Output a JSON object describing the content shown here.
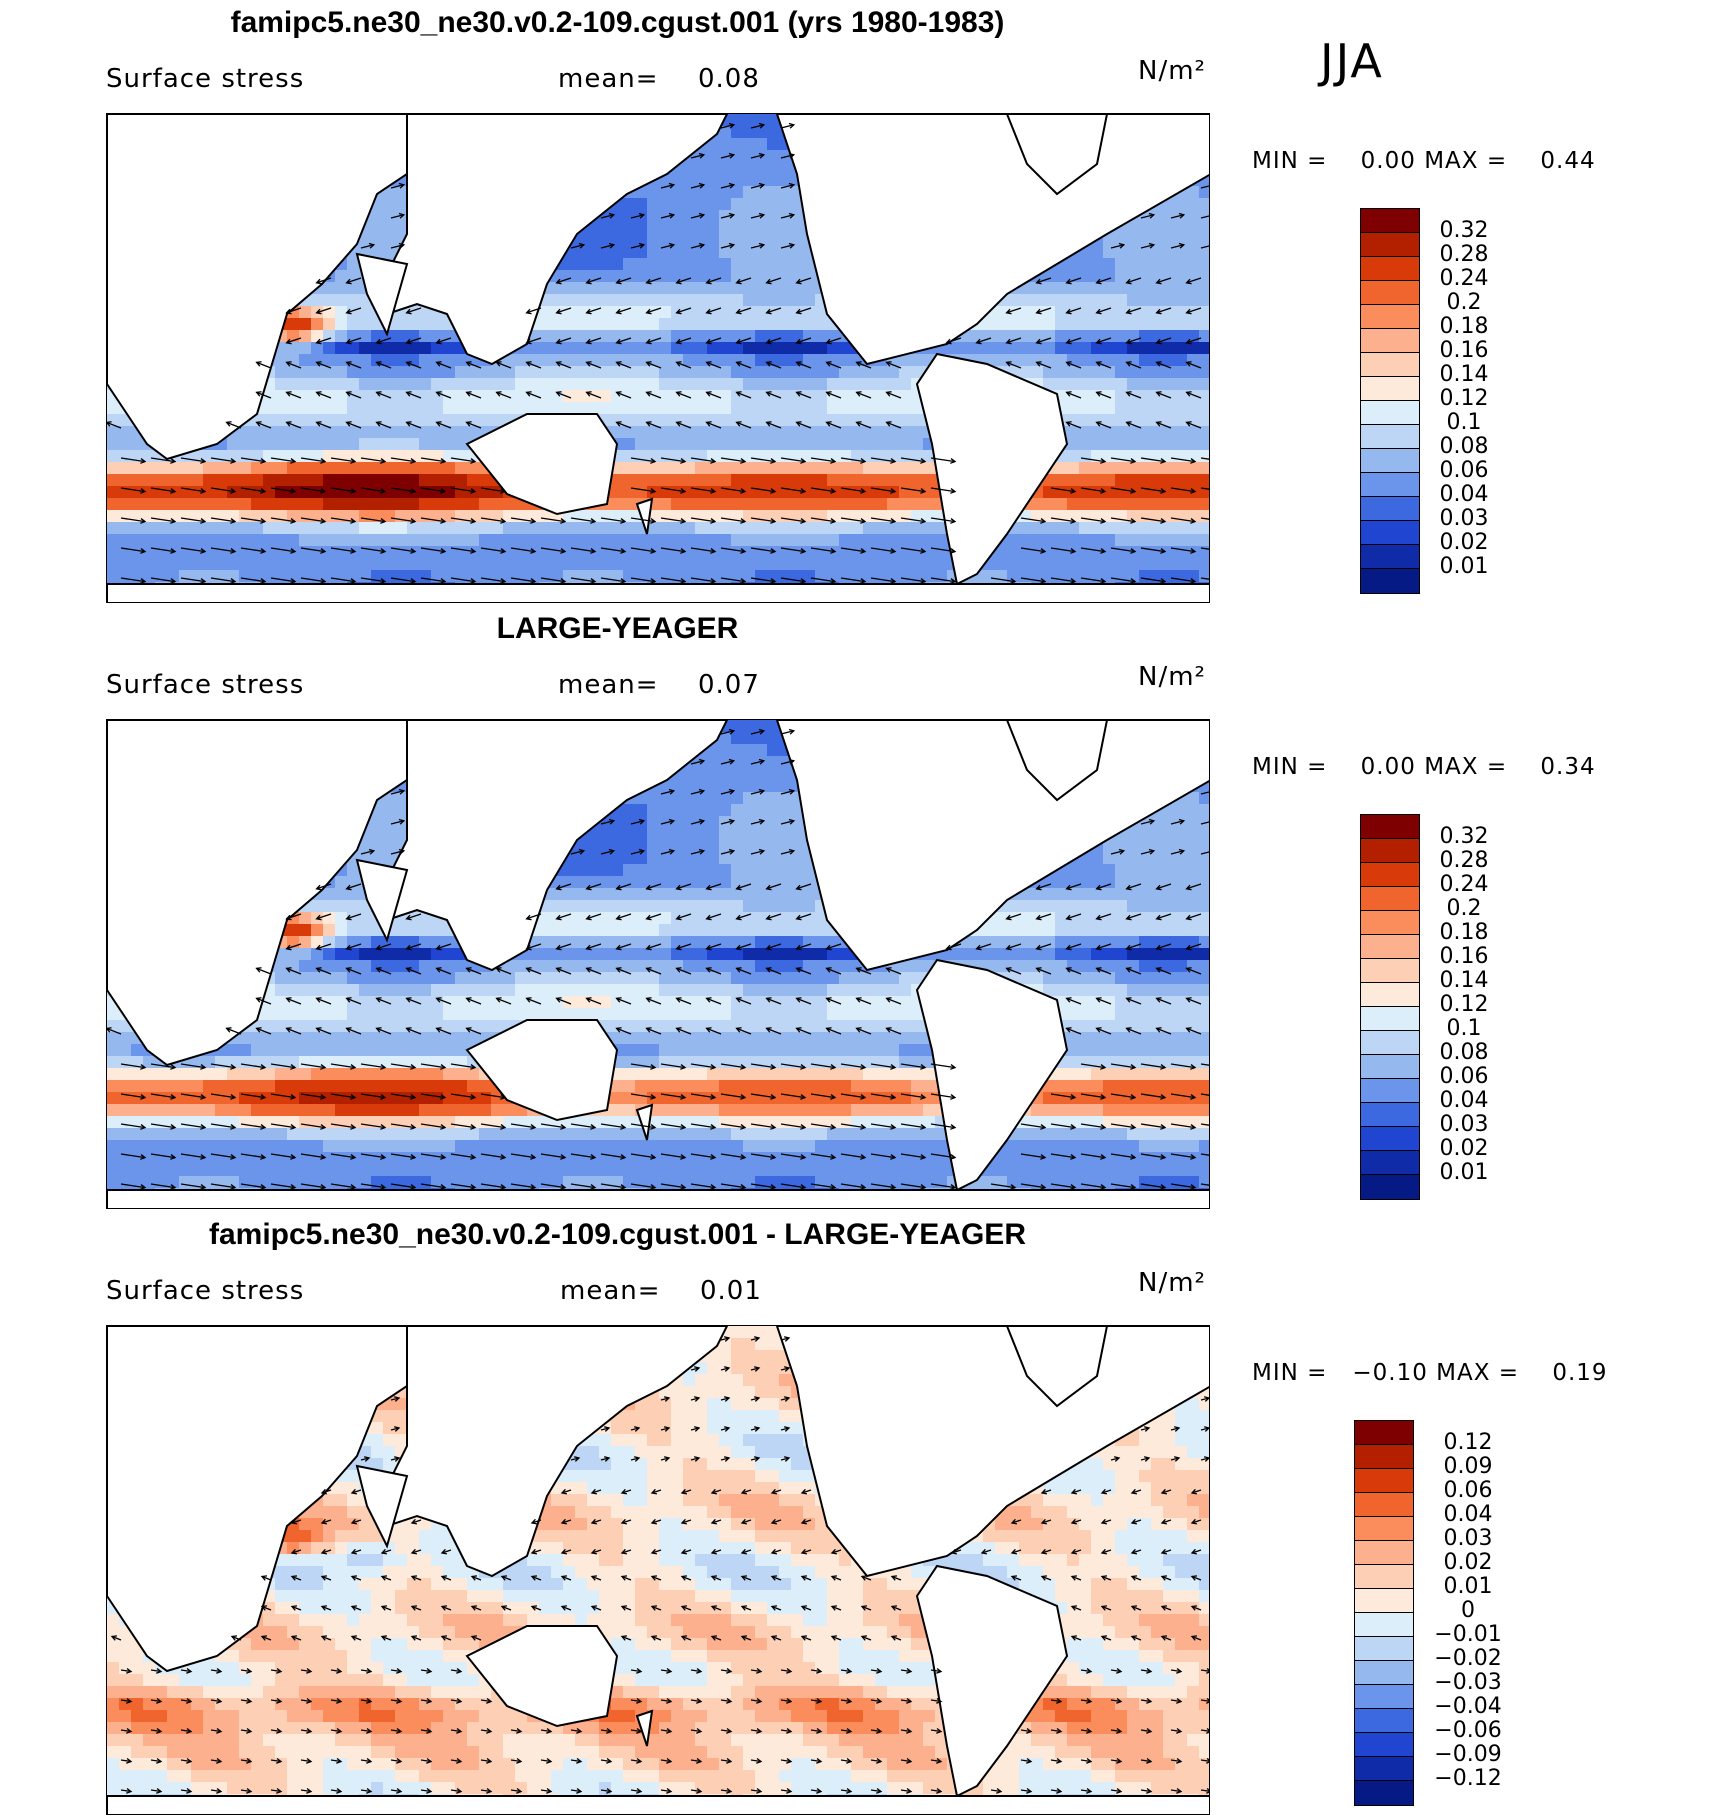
{
  "season": "JJA",
  "panels": [
    {
      "title": "famipc5.ne30_ne30.v0.2-109.cgust.001 (yrs 1980-1983)",
      "variable": "Surface stress",
      "mean_label": "mean=",
      "mean": "0.08",
      "units": "N/m²",
      "min_label": "MIN =",
      "min": "0.00",
      "max_label": "MAX =",
      "max": "0.44",
      "palette": "sequential",
      "levels": [
        "0.32",
        "0.28",
        "0.24",
        "0.2",
        "0.18",
        "0.16",
        "0.14",
        "0.12",
        "0.1",
        "0.08",
        "0.06",
        "0.04",
        "0.03",
        "0.02",
        "0.01"
      ],
      "colors": [
        "#7f0000",
        "#b22000",
        "#d83a0a",
        "#f0642e",
        "#fb8d5c",
        "#fcb08e",
        "#fdd0b6",
        "#fdeadb",
        "#dceefa",
        "#bdd6f5",
        "#95b8ef",
        "#6a95ea",
        "#3d69e0",
        "#2045d0",
        "#0f2ba8",
        "#061a86"
      ]
    },
    {
      "title": "LARGE-YEAGER",
      "variable": "Surface stress",
      "mean_label": "mean=",
      "mean": "0.07",
      "units": "N/m²",
      "min_label": "MIN =",
      "min": "0.00",
      "max_label": "MAX =",
      "max": "0.34",
      "palette": "sequential",
      "levels": [
        "0.32",
        "0.28",
        "0.24",
        "0.2",
        "0.18",
        "0.16",
        "0.14",
        "0.12",
        "0.1",
        "0.08",
        "0.06",
        "0.04",
        "0.03",
        "0.02",
        "0.01"
      ],
      "colors": [
        "#7f0000",
        "#b22000",
        "#d83a0a",
        "#f0642e",
        "#fb8d5c",
        "#fcb08e",
        "#fdd0b6",
        "#fdeadb",
        "#dceefa",
        "#bdd6f5",
        "#95b8ef",
        "#6a95ea",
        "#3d69e0",
        "#2045d0",
        "#0f2ba8",
        "#061a86"
      ]
    },
    {
      "title": "famipc5.ne30_ne30.v0.2-109.cgust.001 - LARGE-YEAGER",
      "variable": "Surface stress",
      "mean_label": "mean=",
      "mean": "0.01",
      "units": "N/m²",
      "min_label": "MIN =",
      "min": "−0.10",
      "max_label": "MAX =",
      "max": "0.19",
      "palette": "diverging",
      "levels": [
        "0.12",
        "0.09",
        "0.06",
        "0.04",
        "0.03",
        "0.02",
        "0.01",
        "0",
        "−0.01",
        "−0.02",
        "−0.03",
        "−0.04",
        "−0.06",
        "−0.09",
        "−0.12"
      ],
      "colors": [
        "#7f0000",
        "#b22000",
        "#d83a0a",
        "#f0642e",
        "#fb8d5c",
        "#fcb08e",
        "#fdd0b6",
        "#fdeadb",
        "#dceefa",
        "#bdd6f5",
        "#95b8ef",
        "#6a95ea",
        "#3d69e0",
        "#2045d0",
        "#0f2ba8",
        "#061a86"
      ]
    }
  ]
}
